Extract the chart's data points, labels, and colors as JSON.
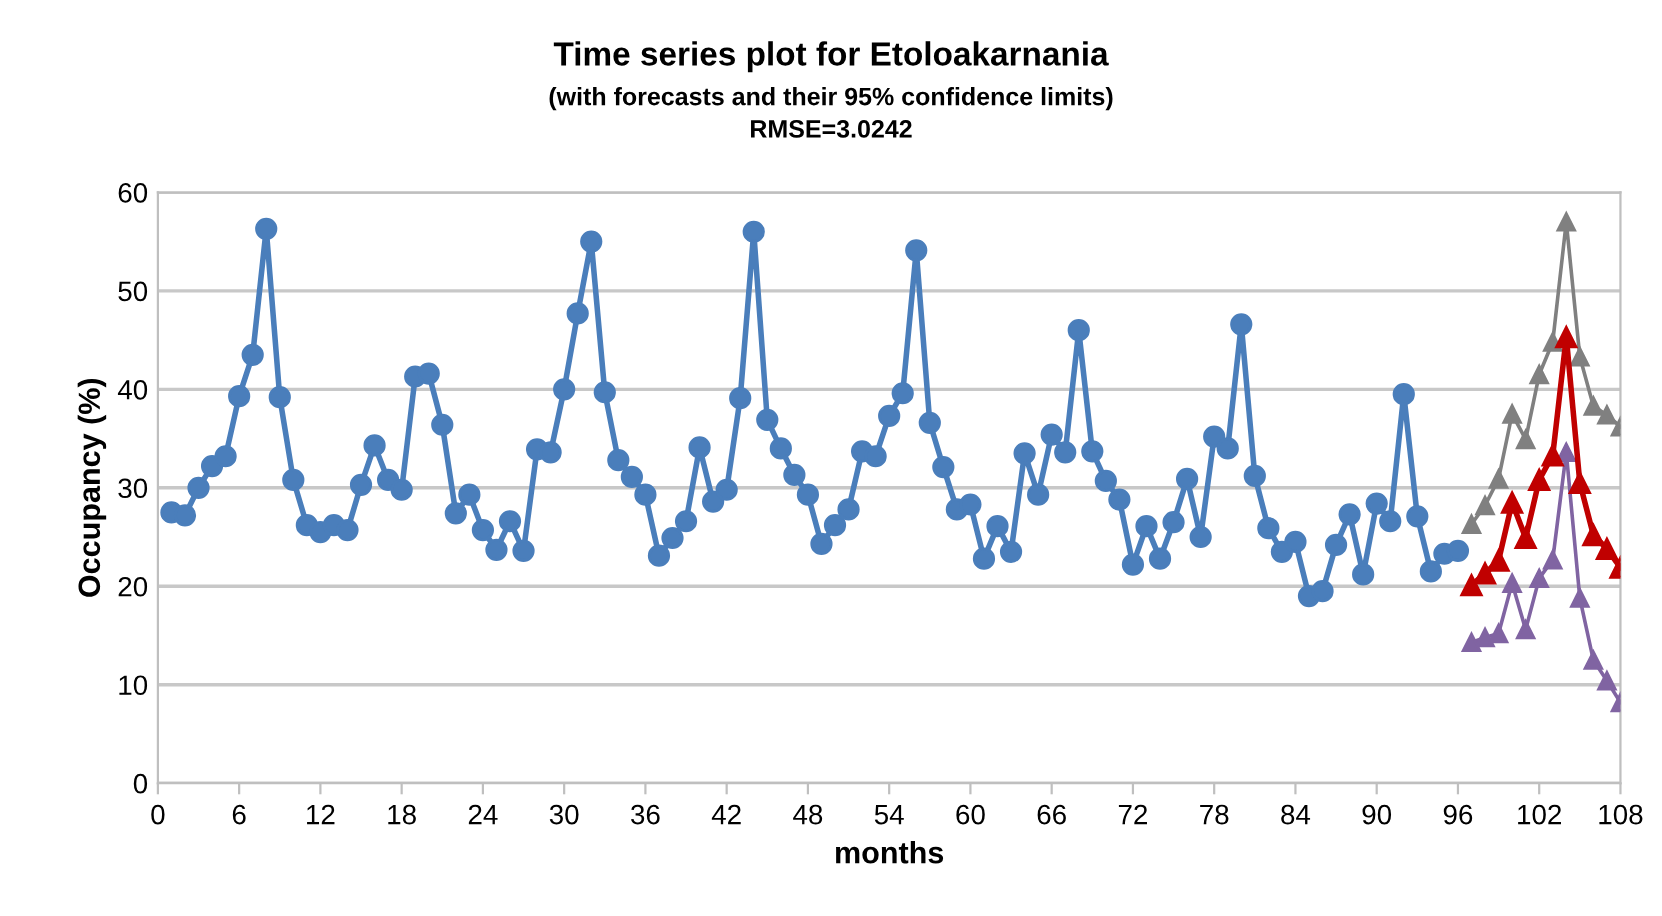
{
  "chart_data": {
    "type": "line",
    "title": "Time series plot for Etoloakarnania",
    "subtitle": "(with forecasts and their 95% confidence limits)\nRMSE=3.0242",
    "xlabel": "months",
    "ylabel": "Occupancy (%)",
    "xlim": [
      0,
      108
    ],
    "xticks": [
      0,
      6,
      12,
      18,
      24,
      30,
      36,
      42,
      48,
      54,
      60,
      66,
      72,
      78,
      84,
      90,
      96,
      102,
      108
    ],
    "ylim": [
      0,
      60
    ],
    "yticks": [
      0,
      10,
      20,
      30,
      40,
      50,
      60
    ],
    "grid": "y",
    "legend": false,
    "series": [
      {
        "color": "#4a7ebb",
        "marker": "circle",
        "x": [
          1,
          2,
          3,
          4,
          5,
          6,
          7,
          8,
          9,
          10,
          11,
          12,
          13,
          14,
          15,
          16,
          17,
          18,
          19,
          20,
          21,
          22,
          23,
          24,
          25,
          26,
          27,
          28,
          29,
          30,
          31,
          32,
          33,
          34,
          35,
          36,
          37,
          38,
          39,
          40,
          41,
          42,
          43,
          44,
          45,
          46,
          47,
          48,
          49,
          50,
          51,
          52,
          53,
          54,
          55,
          56,
          57,
          58,
          59,
          60,
          61,
          62,
          63,
          64,
          65,
          66,
          67,
          68,
          69,
          70,
          71,
          72,
          73,
          74,
          75,
          76,
          77,
          78,
          79,
          80,
          81,
          82,
          83,
          84,
          85,
          86,
          87,
          88,
          89,
          90,
          91,
          92,
          93,
          94,
          95,
          96
        ],
        "values": [
          27.5,
          27.2,
          30,
          32.2,
          33.2,
          39.3,
          43.5,
          56.3,
          39.2,
          30.8,
          26.2,
          25.5,
          26.2,
          25.7,
          30.3,
          34.3,
          30.8,
          29.8,
          41.3,
          41.6,
          36.4,
          27.4,
          29.3,
          25.7,
          23.7,
          26.6,
          23.6,
          33.9,
          33.6,
          40,
          47.7,
          55,
          39.7,
          32.8,
          31.1,
          29.3,
          23.1,
          24.9,
          26.6,
          34.1,
          28.6,
          29.8,
          39.1,
          56,
          36.9,
          34,
          31.3,
          29.3,
          24.3,
          26.2,
          27.8,
          33.7,
          33.2,
          37.3,
          39.6,
          54.1,
          36.6,
          32.1,
          27.8,
          28.3,
          22.8,
          26.1,
          23.5,
          33.5,
          29.3,
          35.4,
          33.6,
          46,
          33.7,
          30.7,
          28.8,
          22.2,
          26.1,
          22.8,
          26.5,
          30.9,
          25,
          35.2,
          34,
          46.6,
          31.2,
          25.9,
          23.5,
          24.5,
          19,
          19.5,
          24.2,
          27.3,
          21.2,
          28.4,
          26.6,
          39.5,
          27.1,
          21.5,
          23.3,
          23.6
        ]
      },
      {
        "color": "#808080",
        "marker": "triangle",
        "x": [
          97,
          98,
          99,
          100,
          101,
          102,
          103,
          104,
          105,
          106,
          107,
          108
        ],
        "values": [
          26.3,
          28.2,
          30.9,
          37.5,
          34.9,
          41.5,
          44.8,
          57,
          43.3,
          38.3,
          37.4,
          36.2
        ]
      },
      {
        "color": "#8064a2",
        "marker": "triangle",
        "x": [
          97,
          98,
          99,
          100,
          101,
          102,
          103,
          104,
          105,
          106,
          107,
          108
        ],
        "values": [
          14.3,
          14.8,
          15.2,
          20.3,
          15.6,
          20.8,
          22.7,
          33.6,
          18.8,
          12.5,
          10.4,
          8.2
        ]
      },
      {
        "color": "#c00000",
        "marker": "triangle",
        "x": [
          97,
          98,
          99,
          100,
          101,
          102,
          103,
          104,
          105,
          106,
          107,
          108
        ],
        "values": [
          20.1,
          21.3,
          22.6,
          28.5,
          24.9,
          30.8,
          33.3,
          45.3,
          30.5,
          25.2,
          23.8,
          21.9
        ]
      }
    ]
  }
}
